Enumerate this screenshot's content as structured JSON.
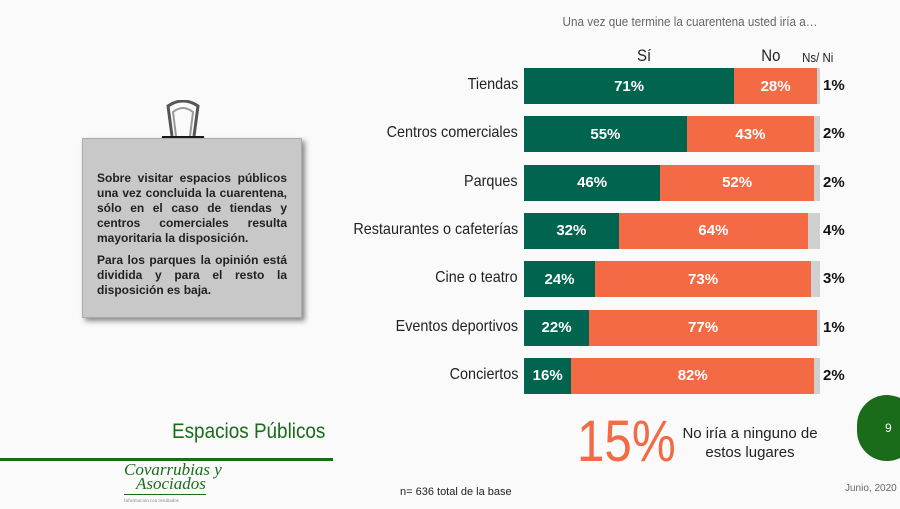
{
  "question": "Una vez que termine la cuarentena usted iría a…",
  "note": {
    "p1": "Sobre visitar espacios públicos una vez concluida la cuarentena, sólo en el caso de tiendas y centros comerciales resulta mayoritaria la disposición.",
    "p2": "Para los parques la opinión está dividida y para el resto la disposición es baja."
  },
  "section_title": "Espacios Públicos",
  "highlight": {
    "value": "15%",
    "text": "No iría a ninguno de estos lugares"
  },
  "page_number": "9",
  "base_note": "n= 636 total de la base",
  "date": "Junio, 2020",
  "logo": {
    "line1": "Covarrubias y",
    "line2": "Asociados",
    "tagline": "Información con resultados"
  },
  "chart_data": {
    "type": "bar",
    "orientation": "horizontal",
    "stacked": true,
    "xlim": [
      0,
      100
    ],
    "categories": [
      "Tiendas",
      "Centros comerciales",
      "Parques",
      "Restaurantes o cafeterías",
      "Cine o teatro",
      "Eventos deportivos",
      "Conciertos"
    ],
    "series": [
      {
        "name": "Sí",
        "color": "#00644f",
        "values": [
          71,
          55,
          46,
          32,
          24,
          22,
          16
        ]
      },
      {
        "name": "No",
        "color": "#f46a45",
        "values": [
          28,
          43,
          52,
          64,
          73,
          77,
          82
        ]
      },
      {
        "name": "Ns/ Ni",
        "color": "#d0d0d0",
        "values": [
          1,
          2,
          2,
          4,
          3,
          1,
          2
        ]
      }
    ],
    "labels_suffix": "%"
  }
}
